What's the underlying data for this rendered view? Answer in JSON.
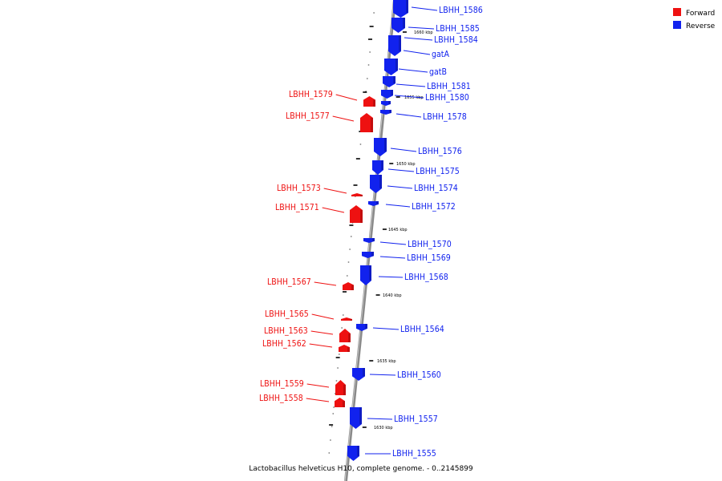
{
  "caption": "Lactobacillus helveticus H10, complete genome. - 0..2145899",
  "legend": [
    {
      "label": "Forward",
      "color": "#ee1111"
    },
    {
      "label": "Reverse",
      "color": "#1122ee"
    }
  ],
  "colors": {
    "forward": "#ee1111",
    "reverse": "#1122ee",
    "backbone": "#8a8a8a"
  },
  "kbp_marks": [
    "1660 kbp",
    "1655 kbp",
    "1650 kbp",
    "1645 kbp",
    "1640 kbp",
    "1635 kbp",
    "1630 kbp"
  ],
  "genes": [
    {
      "name": "LBHH_1586",
      "strand": "reverse"
    },
    {
      "name": "LBHH_1585",
      "strand": "reverse"
    },
    {
      "name": "LBHH_1584",
      "strand": "reverse"
    },
    {
      "name": "gatA",
      "strand": "reverse"
    },
    {
      "name": "gatB",
      "strand": "reverse"
    },
    {
      "name": "LBHH_1581",
      "strand": "reverse"
    },
    {
      "name": "LBHH_1580",
      "strand": "reverse"
    },
    {
      "name": "LBHH_1579",
      "strand": "forward"
    },
    {
      "name": "LBHH_1578",
      "strand": "reverse"
    },
    {
      "name": "LBHH_1577",
      "strand": "forward"
    },
    {
      "name": "LBHH_1576",
      "strand": "reverse"
    },
    {
      "name": "LBHH_1575",
      "strand": "reverse"
    },
    {
      "name": "LBHH_1574",
      "strand": "reverse"
    },
    {
      "name": "LBHH_1573",
      "strand": "forward"
    },
    {
      "name": "LBHH_1572",
      "strand": "reverse"
    },
    {
      "name": "LBHH_1571",
      "strand": "forward"
    },
    {
      "name": "LBHH_1570",
      "strand": "reverse"
    },
    {
      "name": "LBHH_1569",
      "strand": "reverse"
    },
    {
      "name": "LBHH_1568",
      "strand": "reverse"
    },
    {
      "name": "LBHH_1567",
      "strand": "forward"
    },
    {
      "name": "LBHH_1565",
      "strand": "forward"
    },
    {
      "name": "LBHH_1564",
      "strand": "reverse"
    },
    {
      "name": "LBHH_1563",
      "strand": "forward"
    },
    {
      "name": "LBHH_1562",
      "strand": "forward"
    },
    {
      "name": "LBHH_1560",
      "strand": "reverse"
    },
    {
      "name": "LBHH_1559",
      "strand": "forward"
    },
    {
      "name": "LBHH_1558",
      "strand": "forward"
    },
    {
      "name": "LBHH_1557",
      "strand": "reverse"
    },
    {
      "name": "LBHH_1555",
      "strand": "reverse"
    }
  ]
}
